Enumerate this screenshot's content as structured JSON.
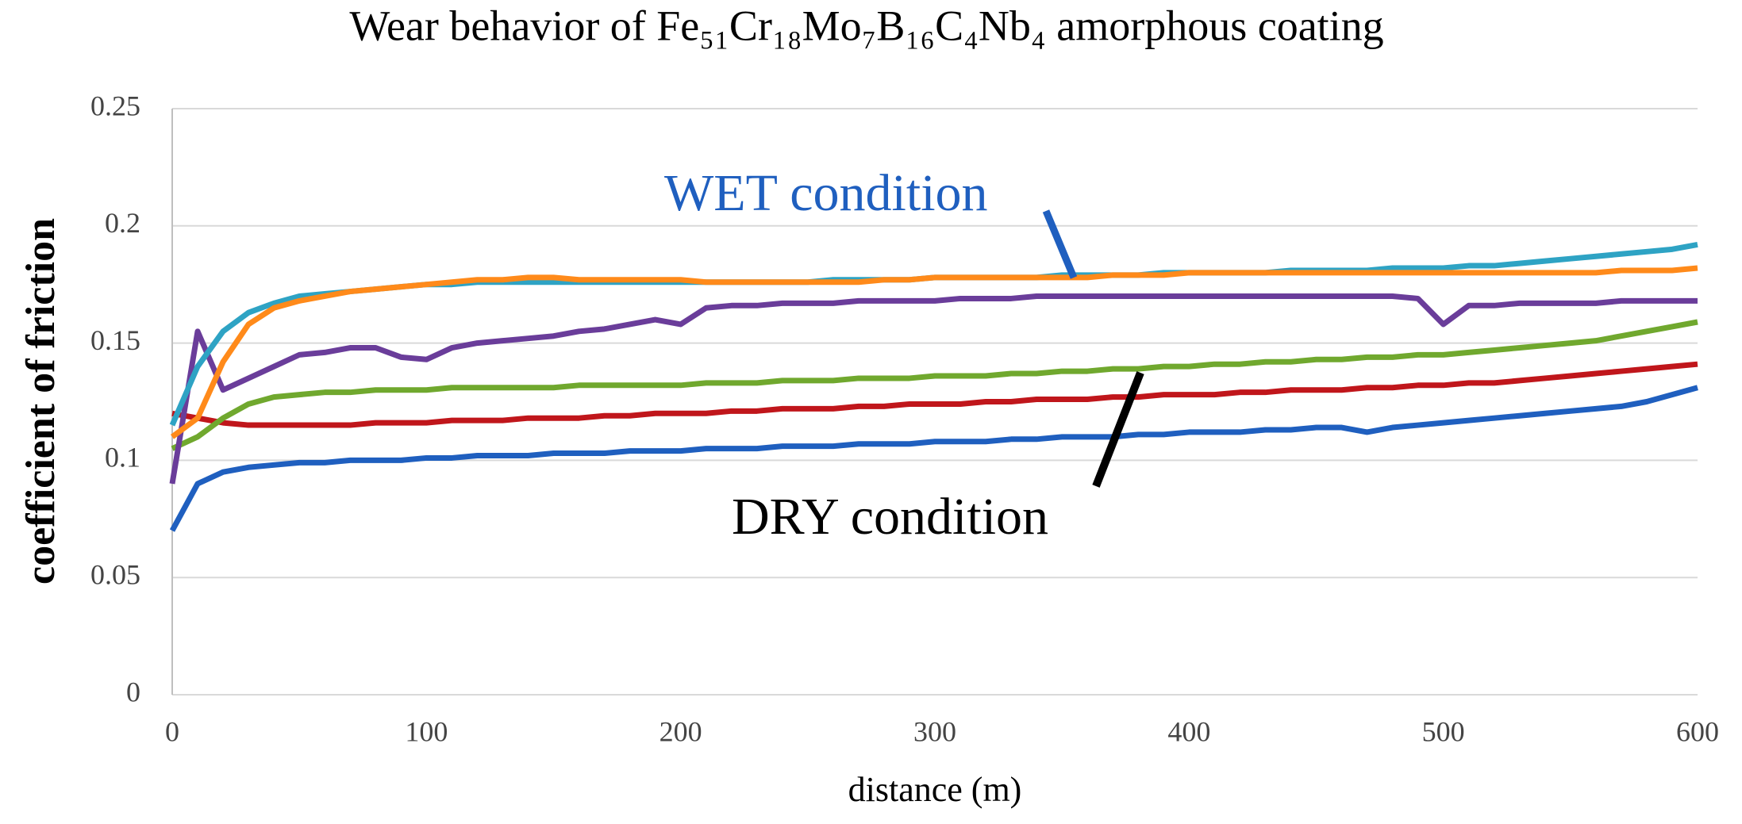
{
  "chart_data": {
    "type": "line",
    "title": "Wear behavior of Fe₅₁Cr₁₈Mo₇B₁₆C₄Nb₄ amorphous coating",
    "x_label": "distance (m)",
    "y_label": "coefficient of friction",
    "xlim": [
      0,
      600
    ],
    "xticks": [
      0,
      100,
      200,
      300,
      400,
      500,
      600
    ],
    "ylim": [
      0,
      0.25
    ],
    "yticks": [
      0,
      0.05,
      0.1,
      0.15,
      0.2,
      0.25
    ],
    "grid": true,
    "annotations": [
      {
        "text": "WET condition",
        "color": "#1f5fbf"
      },
      {
        "text": "DRY condition",
        "color": "#000000"
      }
    ],
    "x": [
      0,
      10,
      20,
      30,
      40,
      50,
      60,
      70,
      80,
      90,
      100,
      110,
      120,
      130,
      140,
      150,
      160,
      170,
      180,
      190,
      200,
      210,
      220,
      230,
      240,
      250,
      260,
      270,
      280,
      290,
      300,
      310,
      320,
      330,
      340,
      350,
      360,
      370,
      380,
      390,
      400,
      410,
      420,
      430,
      440,
      450,
      460,
      470,
      480,
      490,
      500,
      510,
      520,
      530,
      540,
      550,
      560,
      570,
      580,
      590,
      600
    ],
    "series": [
      {
        "color": "#1f5fbf",
        "values": [
          0.07,
          0.09,
          0.095,
          0.097,
          0.098,
          0.099,
          0.099,
          0.1,
          0.1,
          0.1,
          0.101,
          0.101,
          0.102,
          0.102,
          0.102,
          0.103,
          0.103,
          0.103,
          0.104,
          0.104,
          0.104,
          0.105,
          0.105,
          0.105,
          0.106,
          0.106,
          0.106,
          0.107,
          0.107,
          0.107,
          0.108,
          0.108,
          0.108,
          0.109,
          0.109,
          0.11,
          0.11,
          0.11,
          0.111,
          0.111,
          0.112,
          0.112,
          0.112,
          0.113,
          0.113,
          0.114,
          0.114,
          0.112,
          0.114,
          0.115,
          0.116,
          0.117,
          0.118,
          0.119,
          0.12,
          0.121,
          0.122,
          0.123,
          0.125,
          0.128,
          0.131
        ]
      },
      {
        "color": "#c0161b",
        "values": [
          0.12,
          0.118,
          0.116,
          0.115,
          0.115,
          0.115,
          0.115,
          0.115,
          0.116,
          0.116,
          0.116,
          0.117,
          0.117,
          0.117,
          0.118,
          0.118,
          0.118,
          0.119,
          0.119,
          0.12,
          0.12,
          0.12,
          0.121,
          0.121,
          0.122,
          0.122,
          0.122,
          0.123,
          0.123,
          0.124,
          0.124,
          0.124,
          0.125,
          0.125,
          0.126,
          0.126,
          0.126,
          0.127,
          0.127,
          0.128,
          0.128,
          0.128,
          0.129,
          0.129,
          0.13,
          0.13,
          0.13,
          0.131,
          0.131,
          0.132,
          0.132,
          0.133,
          0.133,
          0.134,
          0.135,
          0.136,
          0.137,
          0.138,
          0.139,
          0.14,
          0.141
        ]
      },
      {
        "color": "#70a82e",
        "values": [
          0.105,
          0.11,
          0.118,
          0.124,
          0.127,
          0.128,
          0.129,
          0.129,
          0.13,
          0.13,
          0.13,
          0.131,
          0.131,
          0.131,
          0.131,
          0.131,
          0.132,
          0.132,
          0.132,
          0.132,
          0.132,
          0.133,
          0.133,
          0.133,
          0.134,
          0.134,
          0.134,
          0.135,
          0.135,
          0.135,
          0.136,
          0.136,
          0.136,
          0.137,
          0.137,
          0.138,
          0.138,
          0.139,
          0.139,
          0.14,
          0.14,
          0.141,
          0.141,
          0.142,
          0.142,
          0.143,
          0.143,
          0.144,
          0.144,
          0.145,
          0.145,
          0.146,
          0.147,
          0.148,
          0.149,
          0.15,
          0.151,
          0.153,
          0.155,
          0.157,
          0.159
        ]
      },
      {
        "color": "#6a3d9a",
        "values": [
          0.09,
          0.155,
          0.13,
          0.135,
          0.14,
          0.145,
          0.146,
          0.148,
          0.148,
          0.144,
          0.143,
          0.148,
          0.15,
          0.151,
          0.152,
          0.153,
          0.155,
          0.156,
          0.158,
          0.16,
          0.158,
          0.165,
          0.166,
          0.166,
          0.167,
          0.167,
          0.167,
          0.168,
          0.168,
          0.168,
          0.168,
          0.169,
          0.169,
          0.169,
          0.17,
          0.17,
          0.17,
          0.17,
          0.17,
          0.17,
          0.17,
          0.17,
          0.17,
          0.17,
          0.17,
          0.17,
          0.17,
          0.17,
          0.17,
          0.169,
          0.158,
          0.166,
          0.166,
          0.167,
          0.167,
          0.167,
          0.167,
          0.168,
          0.168,
          0.168,
          0.168
        ]
      },
      {
        "color": "#2ea3c4",
        "values": [
          0.115,
          0.14,
          0.155,
          0.163,
          0.167,
          0.17,
          0.171,
          0.172,
          0.173,
          0.174,
          0.175,
          0.175,
          0.176,
          0.176,
          0.176,
          0.176,
          0.176,
          0.176,
          0.176,
          0.176,
          0.176,
          0.176,
          0.176,
          0.176,
          0.176,
          0.176,
          0.177,
          0.177,
          0.177,
          0.177,
          0.178,
          0.178,
          0.178,
          0.178,
          0.178,
          0.179,
          0.179,
          0.179,
          0.179,
          0.18,
          0.18,
          0.18,
          0.18,
          0.18,
          0.181,
          0.181,
          0.181,
          0.181,
          0.182,
          0.182,
          0.182,
          0.183,
          0.183,
          0.184,
          0.185,
          0.186,
          0.187,
          0.188,
          0.189,
          0.19,
          0.192
        ]
      },
      {
        "color": "#ff8a1a",
        "values": [
          0.11,
          0.118,
          0.142,
          0.158,
          0.165,
          0.168,
          0.17,
          0.172,
          0.173,
          0.174,
          0.175,
          0.176,
          0.177,
          0.177,
          0.178,
          0.178,
          0.177,
          0.177,
          0.177,
          0.177,
          0.177,
          0.176,
          0.176,
          0.176,
          0.176,
          0.176,
          0.176,
          0.176,
          0.177,
          0.177,
          0.178,
          0.178,
          0.178,
          0.178,
          0.178,
          0.178,
          0.178,
          0.179,
          0.179,
          0.179,
          0.18,
          0.18,
          0.18,
          0.18,
          0.18,
          0.18,
          0.18,
          0.18,
          0.18,
          0.18,
          0.18,
          0.18,
          0.18,
          0.18,
          0.18,
          0.18,
          0.18,
          0.181,
          0.181,
          0.181,
          0.182
        ]
      }
    ]
  }
}
